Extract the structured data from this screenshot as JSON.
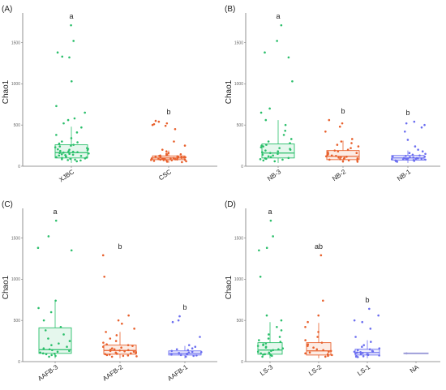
{
  "chart_data": [
    {
      "type": "box",
      "panel_label": "(A)",
      "ylabel": "Chao1",
      "ylim": [
        0,
        1800
      ],
      "yticks": [
        0,
        500,
        1000,
        1500
      ],
      "categories": [
        "XJBC",
        "CSC"
      ],
      "colors": [
        "#2bbf6b",
        "#e8602c"
      ],
      "significance": [
        "a",
        "b"
      ],
      "boxes": [
        {
          "q1": 100,
          "median": 165,
          "q3": 260,
          "whisker_low": 40,
          "whisker_high": 480
        },
        {
          "q1": 80,
          "median": 100,
          "q3": 125,
          "whisker_low": 40,
          "whisker_high": 190
        }
      ],
      "points": [
        [
          1710,
          1520,
          1380,
          1330,
          1320,
          1030,
          730,
          650,
          580,
          560,
          520,
          470,
          410,
          380,
          340,
          300,
          290,
          275,
          260,
          250,
          240,
          230,
          220,
          210,
          205,
          200,
          195,
          185,
          180,
          175,
          170,
          165,
          160,
          155,
          150,
          145,
          140,
          135,
          130,
          125,
          120,
          115,
          110,
          105,
          100,
          95,
          90,
          85,
          80,
          75,
          70,
          60
        ],
        [
          550,
          540,
          520,
          510,
          500,
          490,
          450,
          300,
          250,
          200,
          180,
          160,
          150,
          145,
          140,
          135,
          130,
          125,
          120,
          118,
          115,
          112,
          110,
          108,
          105,
          102,
          100,
          98,
          96,
          94,
          92,
          90,
          88,
          86,
          84,
          82,
          80,
          78,
          76,
          74,
          72,
          70,
          65,
          60,
          55,
          50
        ]
      ]
    },
    {
      "type": "box",
      "panel_label": "(B)",
      "ylabel": "Chao1",
      "ylim": [
        0,
        1800
      ],
      "yticks": [
        0,
        500,
        1000,
        1500
      ],
      "categories": [
        "NB-3",
        "NB-2",
        "NB-1"
      ],
      "colors": [
        "#2bbf6b",
        "#e8602c",
        "#6b6ef0"
      ],
      "significance": [
        "a",
        "b",
        "b"
      ],
      "boxes": [
        {
          "q1": 100,
          "median": 160,
          "q3": 270,
          "whisker_low": 40,
          "whisker_high": 560
        },
        {
          "q1": 80,
          "median": 120,
          "q3": 190,
          "whisker_low": 40,
          "whisker_high": 310
        },
        {
          "q1": 75,
          "median": 100,
          "q3": 130,
          "whisker_low": 40,
          "whisker_high": 190
        }
      ],
      "points": [
        [
          1710,
          1520,
          1380,
          1320,
          1030,
          700,
          650,
          560,
          500,
          430,
          380,
          330,
          300,
          280,
          260,
          250,
          240,
          230,
          220,
          210,
          200,
          190,
          180,
          170,
          160,
          150,
          140,
          130,
          120,
          110,
          100,
          95,
          90,
          85,
          80,
          70,
          60
        ],
        [
          560,
          520,
          480,
          420,
          330,
          300,
          280,
          260,
          240,
          220,
          200,
          190,
          180,
          170,
          160,
          150,
          140,
          130,
          125,
          120,
          115,
          110,
          105,
          100,
          95,
          90,
          85,
          80,
          75,
          70,
          60,
          55
        ],
        [
          540,
          520,
          500,
          470,
          420,
          320,
          240,
          200,
          180,
          160,
          150,
          140,
          130,
          125,
          120,
          115,
          110,
          105,
          100,
          98,
          96,
          94,
          92,
          90,
          88,
          86,
          84,
          82,
          80,
          75,
          70,
          65,
          60,
          55
        ]
      ]
    },
    {
      "type": "box",
      "panel_label": "(C)",
      "ylabel": "Chao1",
      "ylim": [
        0,
        1800
      ],
      "yticks": [
        0,
        500,
        1000,
        1500
      ],
      "categories": [
        "AAFB-3",
        "AAFB-2",
        "AAFB-1"
      ],
      "colors": [
        "#2bbf6b",
        "#e8602c",
        "#6b6ef0"
      ],
      "significance": [
        "a",
        "b",
        "b"
      ],
      "boxes": [
        {
          "q1": 100,
          "median": 145,
          "q3": 410,
          "whisker_low": 40,
          "whisker_high": 740
        },
        {
          "q1": 90,
          "median": 135,
          "q3": 200,
          "whisker_low": 40,
          "whisker_high": 360
        },
        {
          "q1": 80,
          "median": 100,
          "q3": 130,
          "whisker_low": 40,
          "whisker_high": 190
        }
      ],
      "points": [
        [
          1710,
          1520,
          1380,
          1350,
          740,
          650,
          600,
          500,
          420,
          380,
          330,
          280,
          250,
          220,
          200,
          180,
          160,
          150,
          140,
          130,
          120,
          110,
          100,
          95,
          90,
          80,
          70,
          60
        ],
        [
          1290,
          1030,
          560,
          500,
          460,
          400,
          360,
          320,
          280,
          250,
          230,
          210,
          200,
          190,
          180,
          170,
          160,
          150,
          145,
          140,
          135,
          130,
          125,
          120,
          115,
          110,
          105,
          100,
          95,
          90,
          85,
          80,
          75,
          70,
          65,
          60
        ],
        [
          550,
          500,
          480,
          300,
          200,
          180,
          160,
          150,
          140,
          130,
          120,
          115,
          110,
          105,
          100,
          95,
          90,
          85,
          80,
          75,
          70,
          60
        ]
      ]
    },
    {
      "type": "box",
      "panel_label": "(D)",
      "ylabel": "Chao1",
      "ylim": [
        0,
        1800
      ],
      "yticks": [
        0,
        500,
        1000,
        1500
      ],
      "categories": [
        "LS-3",
        "LS-2",
        "LS-1",
        "NA"
      ],
      "colors": [
        "#2bbf6b",
        "#e8602c",
        "#6b6ef0",
        "#9b9bd8"
      ],
      "significance": [
        "a",
        "ab",
        "b",
        ""
      ],
      "boxes": [
        {
          "q1": 90,
          "median": 140,
          "q3": 230,
          "whisker_low": 40,
          "whisker_high": 480
        },
        {
          "q1": 80,
          "median": 130,
          "q3": 230,
          "whisker_low": 40,
          "whisker_high": 470
        },
        {
          "q1": 80,
          "median": 110,
          "q3": 150,
          "whisker_low": 40,
          "whisker_high": 260
        },
        {
          "q1": 95,
          "median": 100,
          "q3": 105,
          "whisker_low": 95,
          "whisker_high": 105
        }
      ],
      "points": [
        [
          1710,
          1520,
          1380,
          1350,
          1030,
          560,
          500,
          420,
          380,
          330,
          300,
          280,
          260,
          240,
          220,
          210,
          200,
          190,
          180,
          170,
          160,
          150,
          140,
          130,
          120,
          110,
          100,
          95,
          90,
          85,
          80,
          70,
          60
        ],
        [
          1290,
          740,
          560,
          480,
          420,
          360,
          300,
          260,
          230,
          210,
          190,
          170,
          150,
          140,
          130,
          120,
          110,
          100,
          90,
          80,
          70,
          60
        ],
        [
          640,
          560,
          500,
          480,
          400,
          300,
          240,
          200,
          180,
          160,
          150,
          140,
          130,
          125,
          120,
          115,
          110,
          105,
          100,
          95,
          90,
          85,
          80,
          75,
          70,
          65,
          60,
          55
        ],
        [
          100
        ]
      ]
    }
  ]
}
